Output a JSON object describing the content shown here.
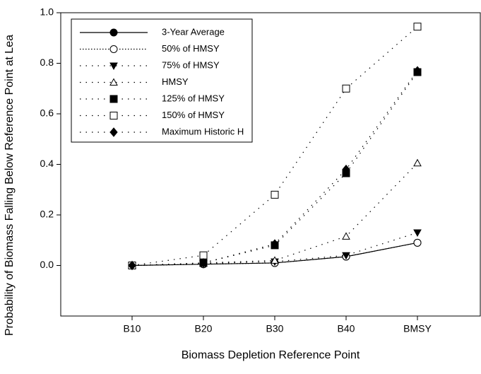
{
  "chart_data": {
    "type": "line",
    "x_label": "Biomass Depletion Reference Point",
    "y_label": "Probability of Biomass Falling Below Reference Point at Lea",
    "categories": [
      "B10",
      "B20",
      "B30",
      "B40",
      "BMSY"
    ],
    "ylim": [
      -0.2,
      1.0
    ],
    "yticks": [
      {
        "value": 0,
        "label": "0.0"
      },
      {
        "value": 0.2,
        "label": "0.2"
      },
      {
        "value": 0.4,
        "label": "0.4"
      },
      {
        "value": 0.6,
        "label": "0.6"
      },
      {
        "value": 0.8,
        "label": "0.8"
      },
      {
        "value": 1.0,
        "label": "1.0"
      }
    ],
    "grid": false,
    "legend": "upper left",
    "series": [
      {
        "name": "3-Year Average",
        "color": "#000000",
        "line_style": "solid",
        "marker": "circle",
        "filled": true,
        "values": [
          0,
          0.005,
          0.01,
          0.035,
          0.09
        ]
      },
      {
        "name": "50% of HMSY",
        "color": "#000000",
        "line_style": "dotted",
        "marker": "circle",
        "filled": false,
        "values": [
          0,
          0.005,
          0.01,
          0.035,
          0.09
        ]
      },
      {
        "name": "75% of HMSY",
        "color": "#000000",
        "line_style": "sparse",
        "marker": "triangle-down",
        "filled": true,
        "values": [
          0,
          0.008,
          0.015,
          0.04,
          0.13
        ]
      },
      {
        "name": "HMSY",
        "color": "#000000",
        "line_style": "sparse",
        "marker": "triangle-up",
        "filled": false,
        "values": [
          0,
          0.01,
          0.02,
          0.115,
          0.405
        ]
      },
      {
        "name": "125% of HMSY",
        "color": "#000000",
        "line_style": "sparse",
        "marker": "square",
        "filled": true,
        "values": [
          0,
          0.01,
          0.08,
          0.365,
          0.765
        ]
      },
      {
        "name": "150% of HMSY",
        "color": "#000000",
        "line_style": "sparse",
        "marker": "square",
        "filled": false,
        "values": [
          0,
          0.04,
          0.28,
          0.7,
          0.945
        ]
      },
      {
        "name": "Maximum Historic H",
        "color": "#000000",
        "line_style": "sparse",
        "marker": "diamond",
        "filled": true,
        "values": [
          0,
          0.01,
          0.085,
          0.38,
          0.77
        ]
      }
    ]
  }
}
